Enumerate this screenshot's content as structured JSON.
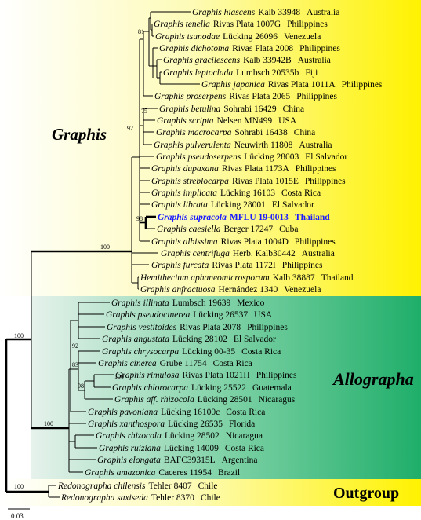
{
  "groups": {
    "graphis": "Graphis",
    "allographa": "Allographa",
    "outgroup": "Outgroup"
  },
  "taxa": [
    {
      "name": "Graphis hiascens",
      "voucher": "Kalb 33948",
      "locality": "Australia"
    },
    {
      "name": "Graphis tenella",
      "voucher": "Rivas Plata 1007G",
      "locality": "Philippines"
    },
    {
      "name": "Graphis tsunodae",
      "voucher": "Lücking 26096",
      "locality": "Venezuela"
    },
    {
      "name": "Graphis dichotoma",
      "voucher": "Rivas Plata 2008",
      "locality": "Philippines"
    },
    {
      "name": "Graphis gracilescens",
      "voucher": "Kalb 33942B",
      "locality": "Australia"
    },
    {
      "name": "Graphis leptoclada",
      "voucher": "Lumbsch 20535b",
      "locality": "Fiji"
    },
    {
      "name": "Graphis japonica",
      "voucher": "Rivas Plata 1011A",
      "locality": "Philippines"
    },
    {
      "name": "Graphis proserpens",
      "voucher": "Rivas Plata 2065",
      "locality": "Philippines"
    },
    {
      "name": "Graphis betulina",
      "voucher": "Sohrabi 16429",
      "locality": "China"
    },
    {
      "name": "Graphis scripta",
      "voucher": "Nelsen MN499",
      "locality": "USA"
    },
    {
      "name": "Graphis macrocarpa",
      "voucher": "Sohrabi 16438",
      "locality": "China"
    },
    {
      "name": "Graphis pulverulenta",
      "voucher": "Neuwirth 11808",
      "locality": "Australia"
    },
    {
      "name": "Graphis pseudoserpens",
      "voucher": "Lücking 28003",
      "locality": "El Salvador"
    },
    {
      "name": "Graphis dupaxana",
      "voucher": "Rivas Plata 1173A",
      "locality": "Philippines"
    },
    {
      "name": "Graphis streblocarpa",
      "voucher": "Rivas Plata 1015E",
      "locality": "Philippines"
    },
    {
      "name": "Graphis implicata",
      "voucher": "Lücking 16103",
      "locality": "Costa Rica"
    },
    {
      "name": "Graphis librata",
      "voucher": "Lücking 28001",
      "locality": "El Salvador"
    },
    {
      "name": "Graphis supracola",
      "voucher": "MFLU 19-0013",
      "locality": "Thailand"
    },
    {
      "name": "Graphis caesiella",
      "voucher": "Berger 17247",
      "locality": "Cuba"
    },
    {
      "name": "Graphis albissima",
      "voucher": "Rivas Plata 1004D",
      "locality": "Philippines"
    },
    {
      "name": "Graphis centrifuga",
      "voucher": "Herb. Kalb30442",
      "locality": "Australia"
    },
    {
      "name": "Graphis furcata",
      "voucher": "Rivas Plata 1172I",
      "locality": "Philippines"
    },
    {
      "name": "Hemithecium aphaneomicrosporum",
      "voucher": "Kalb 38887",
      "locality": "Thailand"
    },
    {
      "name": "Graphis anfractuosa",
      "voucher": "Hernández 1340",
      "locality": "Venezuela"
    },
    {
      "name": "Graphis illinata",
      "voucher": "Lumbsch 19639",
      "locality": "Mexico"
    },
    {
      "name": "Graphis pseudocinerea",
      "voucher": "Lücking 26537",
      "locality": "USA"
    },
    {
      "name": "Graphis vestitoides",
      "voucher": "Rivas Plata 2078",
      "locality": "Philippines"
    },
    {
      "name": "Graphis angustata",
      "voucher": "Lücking 28102",
      "locality": "El Salvador"
    },
    {
      "name": "Graphis chrysocarpa",
      "voucher": "Lücking 00-35",
      "locality": "Costa Rica"
    },
    {
      "name": "Graphis cinerea",
      "voucher": "Grube 11754",
      "locality": "Costa Rica"
    },
    {
      "name": "Graphis rimulosa",
      "voucher": "Rivas Plata 1021H",
      "locality": "Philippines"
    },
    {
      "name": "Graphis chlorocarpa",
      "voucher": "Lücking 25522",
      "locality": "Guatemala"
    },
    {
      "name": "Graphis aff. rhizocola",
      "voucher": "Lücking 28501",
      "locality": "Nicaragus"
    },
    {
      "name": "Graphis pavoniana",
      "voucher": "Lücking 16100c",
      "locality": "Costa Rica"
    },
    {
      "name": "Graphis xanthospora",
      "voucher": "Lücking 26535",
      "locality": "Florida"
    },
    {
      "name": "Graphis rhizocola",
      "voucher": "Lücking 28502",
      "locality": "Nicaragua"
    },
    {
      "name": "Graphis ruiziana",
      "voucher": "Lücking 14009",
      "locality": "Costa Rica"
    },
    {
      "name": "Graphis elongata",
      "voucher": "BAFC39315L",
      "locality": "Argentina"
    },
    {
      "name": "Graphis amazonica",
      "voucher": "Caceres 11954",
      "locality": "Brazil"
    },
    {
      "name": "Redonographa chilensis",
      "voucher": "Tehler 8407",
      "locality": "Chile"
    },
    {
      "name": "Redonographa saxiseda",
      "voucher": "Tehler 8370",
      "locality": "Chile"
    }
  ],
  "support": [
    81,
    75,
    92,
    98,
    100,
    92,
    83,
    100,
    98,
    100,
    100,
    100
  ],
  "scale": 0.03
}
